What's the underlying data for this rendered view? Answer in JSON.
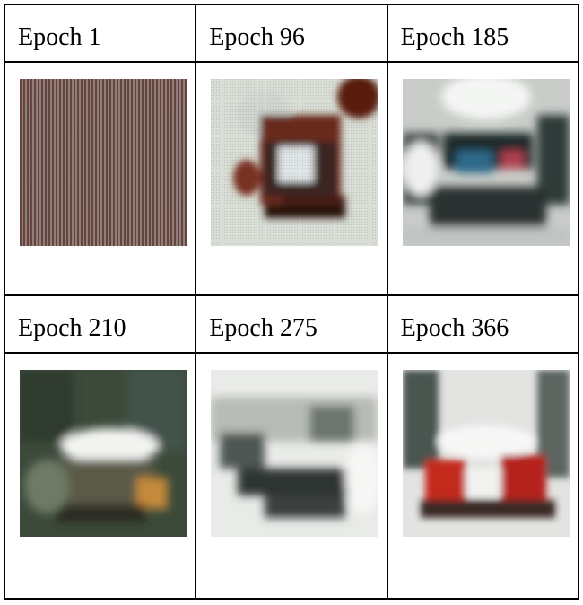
{
  "table": {
    "rows": [
      {
        "labels": [
          "Epoch 1",
          "Epoch 96",
          "Epoch 185"
        ],
        "images": [
          "noise-stripes",
          "dark-red-blob-on-pale",
          "car-dark-blur"
        ]
      },
      {
        "labels": [
          "Epoch 210",
          "Epoch 275",
          "Epoch 366"
        ],
        "images": [
          "car-dark-green-olive",
          "car-grey-white",
          "car-red-on-white"
        ]
      }
    ]
  },
  "colors": {
    "border": "#000000",
    "epoch1": "#7a5e52",
    "epoch96": "#5a1a10",
    "epoch185": "#2b3a35",
    "epoch210": "#3c4a3a",
    "epoch275": "#a9aca5",
    "epoch366": "#c4291c"
  }
}
